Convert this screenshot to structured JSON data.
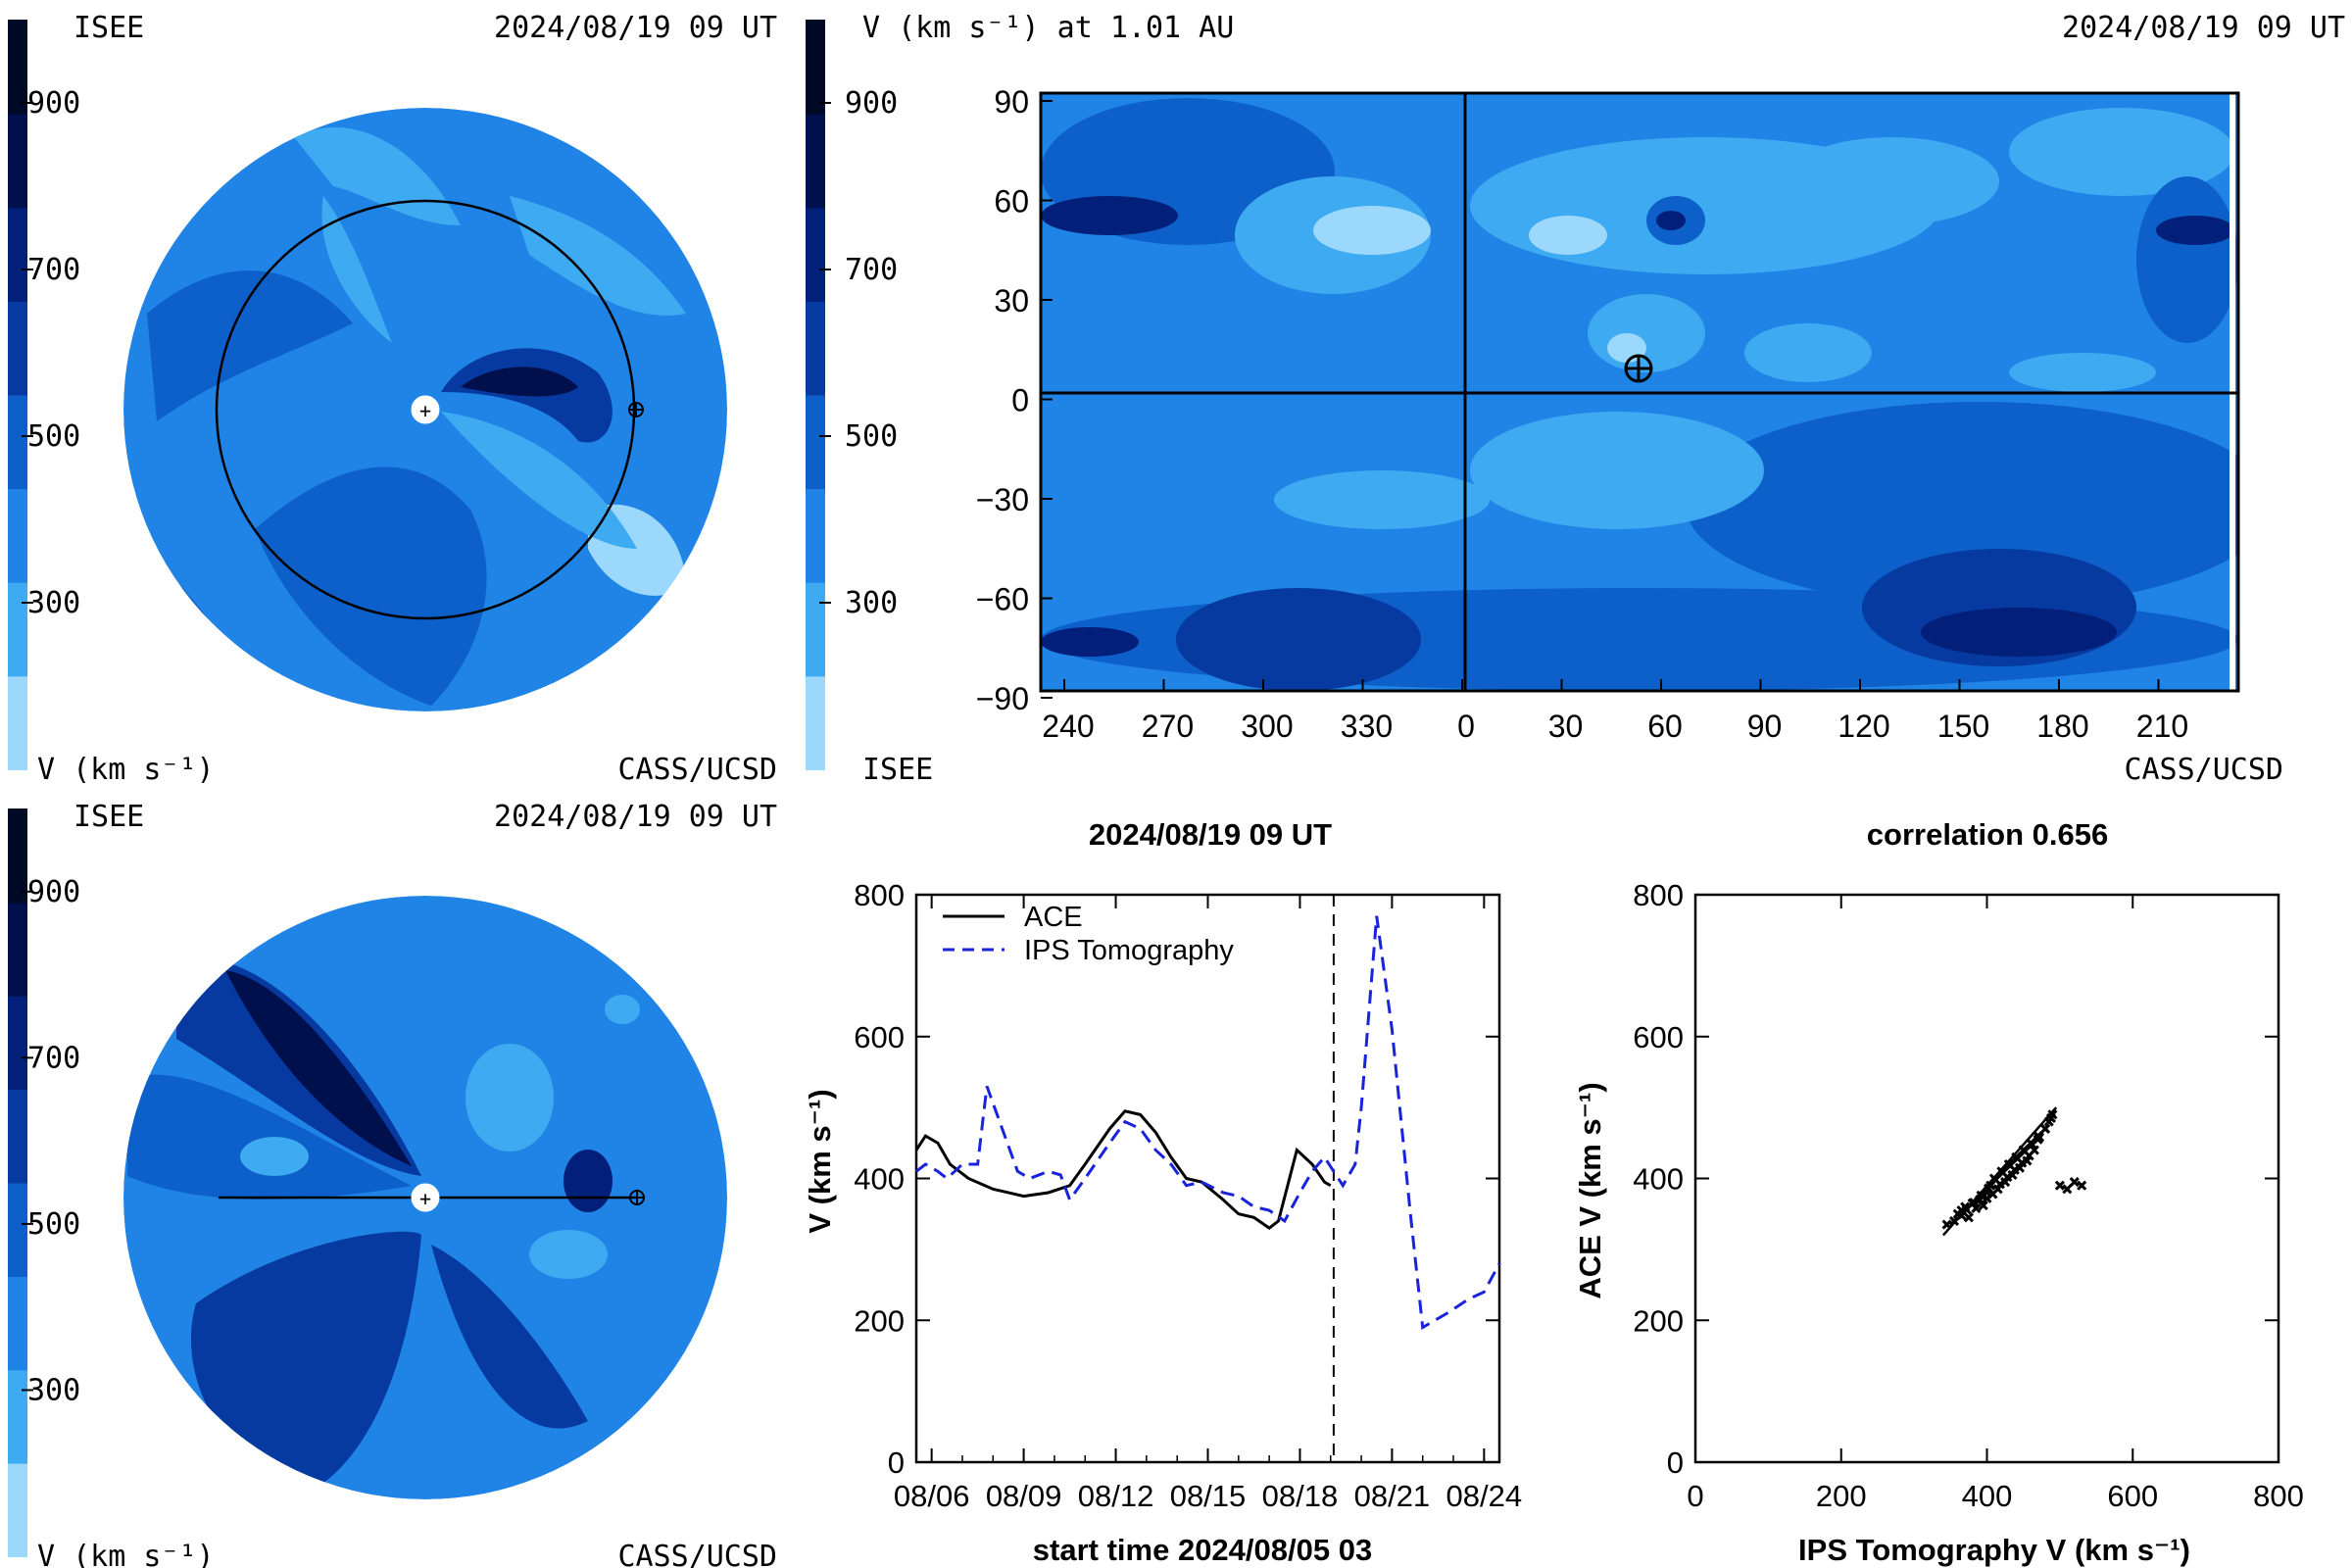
{
  "colorbar": {
    "levels": [
      "#9cd8fb",
      "#3daaf2",
      "#1f84e6",
      "#0d5fc9",
      "#063aa0",
      "#02207a",
      "#00104d",
      "#000a26"
    ],
    "ticks": [
      {
        "v": 300,
        "label": "300"
      },
      {
        "v": 500,
        "label": "500"
      },
      {
        "v": 700,
        "label": "700"
      },
      {
        "v": 900,
        "label": "900"
      }
    ],
    "range": [
      100,
      1000
    ]
  },
  "panel_tl": {
    "top_left": "ISEE",
    "top_right": "2024/08/19 09 UT",
    "bottom_left": "V (km s⁻¹)",
    "bottom_right": "CASS/UCSD"
  },
  "panel_tr": {
    "title_left": "V (km s⁻¹) at 1.01 AU",
    "title_right": "2024/08/19 09 UT",
    "bottom_left": "ISEE",
    "bottom_right": "CASS/UCSD",
    "x_ticks": [
      "240",
      "270",
      "300",
      "330",
      "0",
      "30",
      "60",
      "90",
      "120",
      "150",
      "180",
      "210"
    ],
    "y_ticks": [
      "90",
      "60",
      "30",
      "0",
      "−30",
      "−60",
      "−90"
    ]
  },
  "panel_bl": {
    "top_left": "ISEE",
    "top_right": "2024/08/19 09 UT",
    "bottom_left": "V (km s⁻¹)",
    "bottom_right": "CASS/UCSD"
  },
  "chart_data": [
    {
      "type": "line",
      "title": "2024/08/19 09 UT",
      "xlabel": "start time 2024/08/05 03",
      "ylabel": "V (km s⁻¹)",
      "ylim": [
        0,
        800
      ],
      "xlim": [
        0.5,
        19.5
      ],
      "x_tick_labels": [
        "08/06",
        "08/09",
        "08/12",
        "08/15",
        "08/18",
        "08/21",
        "08/24"
      ],
      "x_tick_positions": [
        1,
        4,
        7,
        10,
        13,
        16,
        19
      ],
      "y_ticks": [
        0,
        200,
        400,
        600,
        800
      ],
      "marker_x": 14.1,
      "series": [
        {
          "name": "ACE",
          "color": "#000000",
          "x": [
            0.5,
            0.8,
            1.2,
            1.6,
            2.2,
            3.0,
            3.5,
            4.0,
            4.8,
            5.5,
            6.0,
            6.8,
            7.3,
            7.8,
            8.3,
            8.8,
            9.3,
            9.8,
            10.5,
            11.0,
            11.5,
            12.0,
            12.3,
            12.6,
            12.9,
            13.4,
            13.8,
            14.0
          ],
          "y": [
            440,
            460,
            450,
            420,
            400,
            385,
            380,
            375,
            380,
            390,
            420,
            470,
            495,
            490,
            465,
            430,
            400,
            395,
            370,
            350,
            345,
            330,
            340,
            390,
            440,
            420,
            395,
            390
          ]
        },
        {
          "name": "IPS Tomography",
          "color": "#1a23dc",
          "x": [
            0.5,
            0.8,
            1.2,
            1.5,
            2.0,
            2.5,
            2.8,
            3.3,
            3.8,
            4.2,
            4.8,
            5.2,
            5.5,
            6.0,
            6.8,
            7.3,
            7.8,
            8.3,
            8.8,
            9.3,
            9.8,
            10.5,
            11.0,
            11.5,
            12.0,
            12.5,
            13.0,
            13.4,
            13.8,
            14.1,
            14.4,
            14.8,
            15.0,
            15.5,
            16.0,
            16.6,
            17.0,
            17.8,
            18.5,
            19.0,
            19.5
          ],
          "y": [
            410,
            420,
            410,
            400,
            420,
            420,
            530,
            470,
            410,
            400,
            410,
            405,
            370,
            400,
            450,
            480,
            470,
            440,
            420,
            390,
            395,
            380,
            375,
            360,
            355,
            340,
            380,
            410,
            430,
            410,
            390,
            420,
            500,
            770,
            610,
            350,
            190,
            210,
            230,
            240,
            280
          ]
        }
      ]
    },
    {
      "type": "scatter",
      "title": "correlation 0.656",
      "xlabel": "IPS Tomography V (km s⁻¹)",
      "ylabel": "ACE V (km s⁻¹)",
      "xlim": [
        0,
        800
      ],
      "ylim": [
        0,
        800
      ],
      "x_ticks": [
        0,
        200,
        400,
        600,
        800
      ],
      "y_ticks": [
        0,
        200,
        400,
        600,
        800
      ],
      "fit_line": [
        [
          340,
          320
        ],
        [
          495,
          500
        ]
      ],
      "x": [
        345,
        355,
        360,
        365,
        370,
        380,
        390,
        395,
        400,
        405,
        410,
        420,
        430,
        440,
        450,
        460,
        470,
        480,
        485,
        490,
        375,
        385,
        400,
        415,
        425,
        435,
        445,
        455,
        465,
        470,
        395,
        408,
        418,
        428,
        438,
        448,
        458,
        500,
        510,
        520,
        530,
        365,
        372,
        382,
        392,
        402,
        412,
        422,
        432,
        442,
        452,
        462,
        472,
        480,
        488
      ],
      "y": [
        335,
        340,
        350,
        355,
        360,
        365,
        370,
        375,
        380,
        390,
        400,
        410,
        420,
        430,
        440,
        450,
        460,
        470,
        480,
        490,
        345,
        358,
        372,
        385,
        395,
        405,
        415,
        425,
        440,
        455,
        362,
        378,
        392,
        402,
        412,
        422,
        432,
        390,
        385,
        395,
        390,
        348,
        356,
        366,
        376,
        386,
        398,
        408,
        418,
        428,
        438,
        448,
        458,
        470,
        485
      ]
    }
  ]
}
